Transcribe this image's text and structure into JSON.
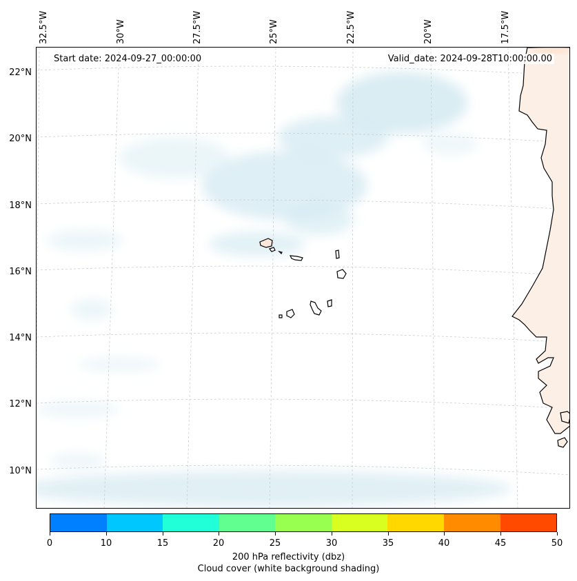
{
  "map": {
    "start_label": "Start date: 2024-09-27_00:00:00",
    "valid_label": "Valid_date: 2024-09-28T10:00:00.00",
    "longitude_labels": [
      "32.5°W",
      "30°W",
      "27.5°W",
      "25°W",
      "22.5°W",
      "20°W",
      "17.5°W"
    ],
    "latitude_labels": [
      "22°N",
      "20°N",
      "18°N",
      "16°N",
      "14°N",
      "12°N",
      "10°N"
    ],
    "cloud_color": "#d6ebf2",
    "coast_color": "#000000"
  },
  "colorbar": {
    "ticks": [
      "0",
      "10",
      "15",
      "20",
      "25",
      "30",
      "35",
      "40",
      "45",
      "50"
    ],
    "colors": [
      "#0080ff",
      "#00c8ff",
      "#20ffd8",
      "#60ff90",
      "#98ff50",
      "#d8ff20",
      "#ffd800",
      "#ff8c00",
      "#ff4a00"
    ],
    "caption_line1": "200 hPa reflectivity (dbz)",
    "caption_line2": "Cloud cover (white background shading)"
  }
}
